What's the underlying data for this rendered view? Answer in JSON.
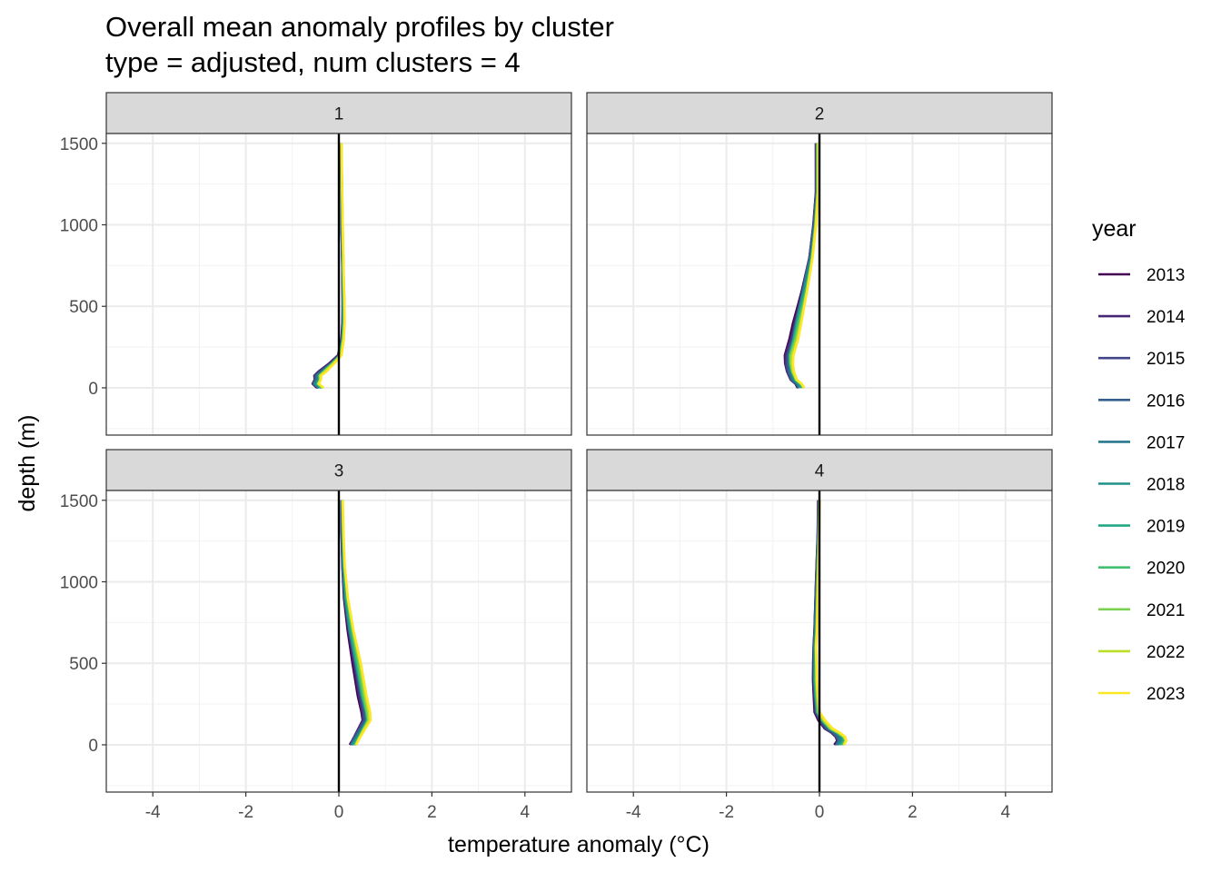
{
  "chart_data": {
    "type": "line",
    "title": "Overall mean anomaly profiles by cluster",
    "subtitle": "type = adjusted, num clusters = 4",
    "xlabel": "temperature anomaly (°C)",
    "ylabel": "depth (m)",
    "xlim": [
      -5,
      5
    ],
    "ylim": [
      1560,
      -290
    ],
    "x_ticks": [
      -4,
      -2,
      0,
      2,
      4
    ],
    "x_tick_labels": [
      "-4",
      "-2",
      "0",
      "2",
      "4"
    ],
    "y_ticks": [
      0,
      500,
      1000,
      1500
    ],
    "y_tick_labels": [
      "0",
      "500",
      "1000",
      "1500"
    ],
    "reference_line": {
      "x": 0,
      "color": "#000000"
    },
    "legend": {
      "title": "year",
      "position": "right",
      "entries": [
        {
          "label": "2013",
          "color": "#440154"
        },
        {
          "label": "2014",
          "color": "#482576"
        },
        {
          "label": "2015",
          "color": "#414487"
        },
        {
          "label": "2016",
          "color": "#35608D"
        },
        {
          "label": "2017",
          "color": "#2A788E"
        },
        {
          "label": "2018",
          "color": "#21908C"
        },
        {
          "label": "2019",
          "color": "#22A884"
        },
        {
          "label": "2020",
          "color": "#43BF71"
        },
        {
          "label": "2021",
          "color": "#7AD151"
        },
        {
          "label": "2022",
          "color": "#BBDF27"
        },
        {
          "label": "2023",
          "color": "#FDE725"
        }
      ]
    },
    "panels": [
      {
        "label": "1",
        "depth": [
          0,
          25,
          50,
          75,
          100,
          150,
          200,
          300,
          400,
          500,
          700,
          1000,
          1300,
          1500
        ],
        "base": [
          -0.4,
          -0.5,
          -0.45,
          -0.45,
          -0.35,
          -0.15,
          0.02,
          0.08,
          0.1,
          0.1,
          0.09,
          0.07,
          0.06,
          0.05
        ],
        "spread": [
          0.1,
          0.1,
          0.1,
          0.1,
          0.1,
          0.06,
          0.04,
          0.03,
          0.03,
          0.03,
          0.02,
          0.02,
          0.01,
          0.01
        ]
      },
      {
        "label": "2",
        "depth": [
          0,
          25,
          50,
          100,
          150,
          200,
          300,
          400,
          500,
          600,
          700,
          800,
          1000,
          1200,
          1500
        ],
        "base": [
          -0.4,
          -0.45,
          -0.55,
          -0.62,
          -0.65,
          -0.65,
          -0.55,
          -0.48,
          -0.4,
          -0.32,
          -0.25,
          -0.18,
          -0.1,
          -0.05,
          -0.05
        ],
        "spread": [
          0.1,
          0.1,
          0.1,
          0.1,
          0.1,
          0.1,
          0.1,
          0.1,
          0.09,
          0.08,
          0.07,
          0.05,
          0.04,
          0.03,
          0.03
        ]
      },
      {
        "label": "3",
        "depth": [
          0,
          25,
          50,
          100,
          150,
          200,
          300,
          500,
          700,
          900,
          1100,
          1300,
          1500
        ],
        "base": [
          0.3,
          0.35,
          0.4,
          0.5,
          0.6,
          0.58,
          0.5,
          0.38,
          0.25,
          0.15,
          0.1,
          0.08,
          0.07
        ],
        "spread": [
          0.1,
          0.1,
          0.1,
          0.1,
          0.1,
          0.1,
          0.1,
          0.1,
          0.08,
          0.06,
          0.04,
          0.03,
          0.02
        ]
      },
      {
        "label": "4",
        "depth": [
          0,
          25,
          50,
          75,
          100,
          150,
          200,
          300,
          400,
          500,
          600,
          700,
          1000,
          1300,
          1500
        ],
        "base": [
          0.42,
          0.48,
          0.45,
          0.35,
          0.2,
          0.05,
          -0.05,
          -0.08,
          -0.1,
          -0.1,
          -0.1,
          -0.08,
          -0.05,
          -0.02,
          -0.01
        ],
        "spread": [
          0.15,
          0.15,
          0.15,
          0.12,
          0.1,
          0.08,
          0.06,
          0.05,
          0.05,
          0.05,
          0.04,
          0.04,
          0.03,
          0.02,
          0.02
        ]
      }
    ]
  }
}
